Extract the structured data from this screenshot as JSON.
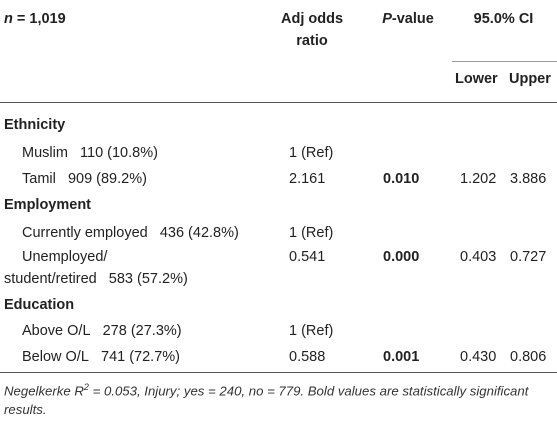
{
  "header": {
    "n_label_italic": "n",
    "n_label_rest": " = 1,019",
    "adj_odds_line1": "Adj odds",
    "adj_odds_line2": "ratio",
    "pvalue_italic": "P",
    "pvalue_rest": "-value",
    "ci": "95.0% CI",
    "lower": "Lower",
    "upper": "Upper"
  },
  "sections": [
    {
      "title": "Ethnicity",
      "rows": [
        {
          "label": "Muslim",
          "count": "110 (10.8%)",
          "or": "1 (Ref)",
          "p": "",
          "lower": "",
          "upper": ""
        },
        {
          "label": "Tamil",
          "count": "909 (89.2%)",
          "or": "2.161",
          "p": "0.010",
          "lower": "1.202",
          "upper": "3.886"
        }
      ]
    },
    {
      "title": "Employment",
      "rows": [
        {
          "label": "Currently employed",
          "count": "436 (42.8%)",
          "or": "1 (Ref)",
          "p": "",
          "lower": "",
          "upper": ""
        },
        {
          "label_line1": "Unemployed/",
          "label_line2": "student/retired",
          "count": "583 (57.2%)",
          "or": "0.541",
          "p": "0.000",
          "lower": "0.403",
          "upper": "0.727"
        }
      ]
    },
    {
      "title": "Education",
      "rows": [
        {
          "label": "Above O/L",
          "count": "278 (27.3%)",
          "or": "1 (Ref)",
          "p": "",
          "lower": "",
          "upper": ""
        },
        {
          "label": "Below O/L",
          "count": "741 (72.7%)",
          "or": "0.588",
          "p": "0.001",
          "lower": "0.430",
          "upper": "0.806"
        }
      ]
    }
  ],
  "footnote": {
    "part1": "Negelkerke R",
    "sup": "2",
    "part2": " = 0.053, Injury; yes = 240, no = 779. Bold values are statistically significant results."
  }
}
